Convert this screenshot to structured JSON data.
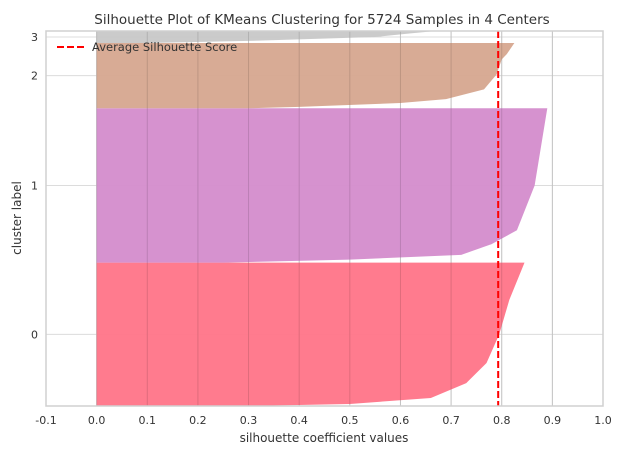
{
  "chart_data": {
    "type": "area",
    "title": "Silhouette Plot of KMeans Clustering for 5724 Samples in 4 Centers",
    "xlabel": "silhouette coefficient values",
    "ylabel": "cluster label",
    "xlim": [
      -0.1,
      1.0
    ],
    "xticks": [
      "-0.1",
      "0.0",
      "0.1",
      "0.2",
      "0.3",
      "0.4",
      "0.5",
      "0.6",
      "0.7",
      "0.8",
      "0.9",
      "1.0"
    ],
    "grid": true,
    "legend": {
      "position": "top-left",
      "entries": [
        "Average Silhouette Score"
      ]
    },
    "average_silhouette_score": 0.793,
    "average_line_color": "#ff0000",
    "clusters": [
      {
        "label": "0",
        "size": 2188,
        "color": "#ff7488",
        "sorted_silhouette_quantiles": [
          [
            0,
            0.3
          ],
          [
            0.014,
            0.5
          ],
          [
            0.056,
            0.66
          ],
          [
            0.16,
            0.73
          ],
          [
            0.3,
            0.77
          ],
          [
            0.5,
            0.795
          ],
          [
            0.74,
            0.815
          ],
          [
            1,
            0.845
          ]
        ]
      },
      {
        "label": "1",
        "size": 2357,
        "color": "#d48ccc",
        "sorted_silhouette_quantiles": [
          [
            0,
            0.25
          ],
          [
            0.02,
            0.5
          ],
          [
            0.05,
            0.72
          ],
          [
            0.12,
            0.78
          ],
          [
            0.21,
            0.83
          ],
          [
            0.5,
            0.865
          ],
          [
            1,
            0.89
          ]
        ]
      },
      {
        "label": "2",
        "size": 995,
        "color": "#d6a78f",
        "sorted_silhouette_quantiles": [
          [
            0,
            0.3
          ],
          [
            0.02,
            0.4
          ],
          [
            0.08,
            0.6
          ],
          [
            0.14,
            0.69
          ],
          [
            0.29,
            0.765
          ],
          [
            0.52,
            0.79
          ],
          [
            0.75,
            0.8
          ],
          [
            0.83,
            0.81
          ],
          [
            1,
            0.825
          ]
        ]
      },
      {
        "label": "3",
        "size": 184,
        "color": "#c8c8c8",
        "sorted_silhouette_quantiles": [
          [
            0,
            0.1
          ],
          [
            0.2,
            0.32
          ],
          [
            0.5,
            0.55
          ],
          [
            0.8,
            0.62
          ],
          [
            1,
            0.67
          ]
        ]
      }
    ]
  }
}
